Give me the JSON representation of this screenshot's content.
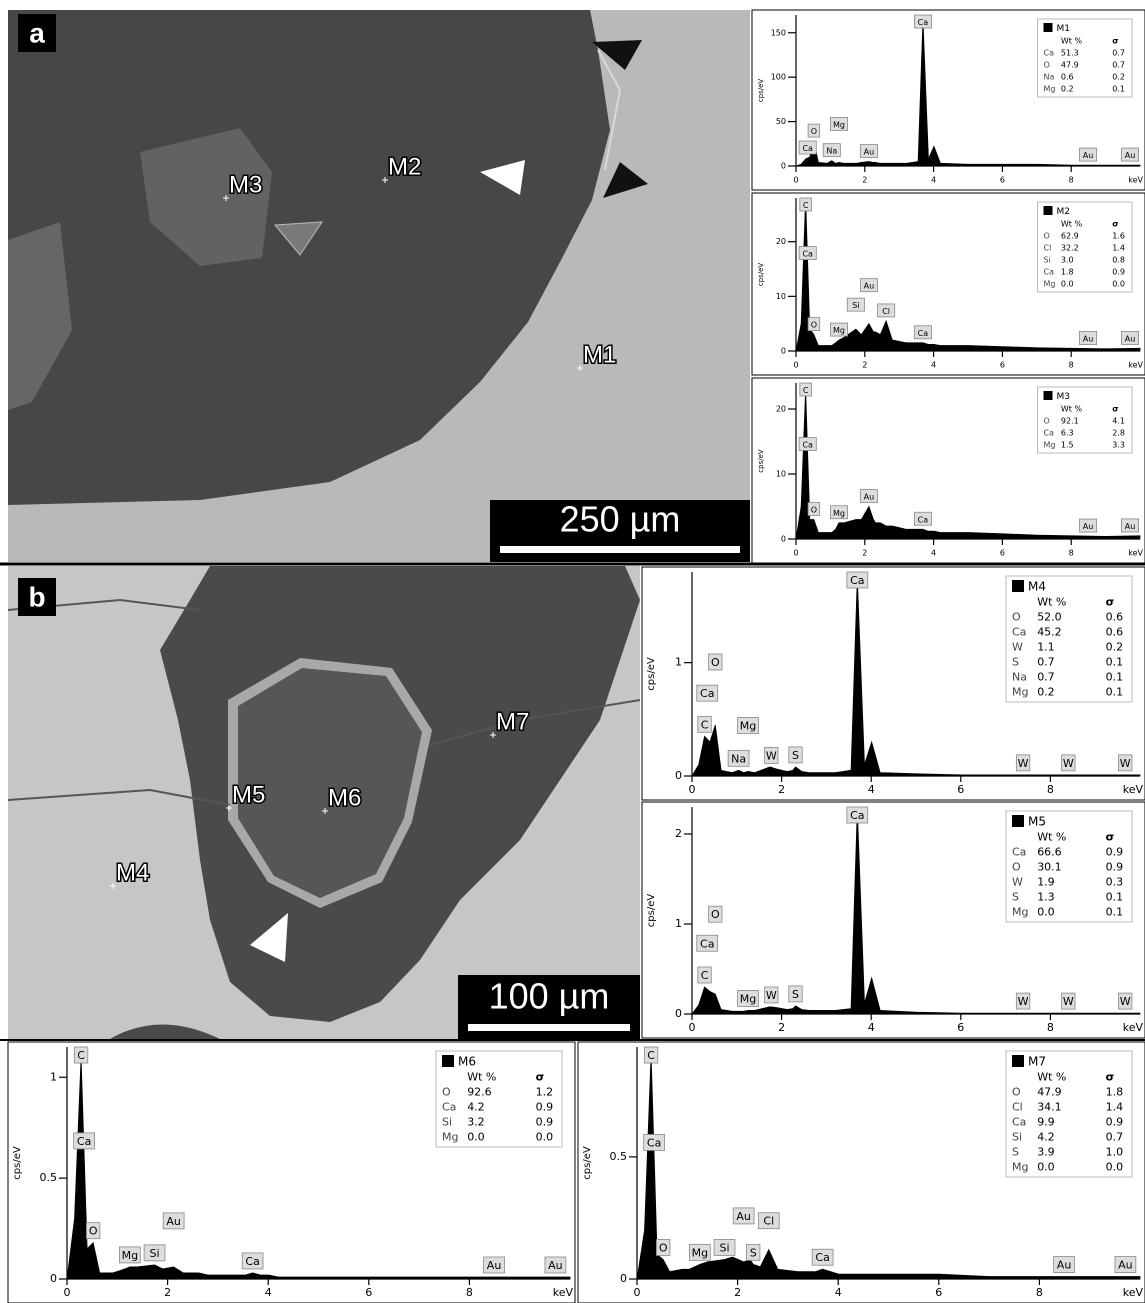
{
  "panels": [
    {
      "label": "a",
      "scale_bar": "250 µm",
      "points": [
        "M3",
        "M2",
        "M1"
      ]
    },
    {
      "label": "b",
      "scale_bar": "100 µm",
      "points": [
        "M7",
        "M5",
        "M6",
        "M4"
      ]
    }
  ],
  "chart_data": [
    {
      "type": "area",
      "x_label": "keV",
      "y_label": "cps/eV",
      "x": [
        0,
        0.15,
        0.28,
        0.4,
        0.52,
        0.65,
        0.9,
        1.04,
        1.15,
        1.25,
        1.4,
        1.74,
        1.9,
        2.12,
        2.25,
        2.31,
        2.45,
        2.62,
        2.8,
        3.2,
        3.55,
        3.69,
        3.85,
        4.01,
        4.2,
        5,
        6,
        7,
        8,
        9,
        10
      ],
      "series": [
        {
          "name": "M1",
          "color": "#000000",
          "values": [
            0,
            2,
            8,
            10,
            28,
            4,
            3,
            6,
            3,
            4,
            3,
            3,
            4,
            5,
            4,
            4,
            3,
            3,
            3,
            3,
            5,
            165,
            8,
            22,
            3,
            2,
            2,
            2,
            1,
            1,
            1
          ]
        }
      ],
      "xlim": [
        0,
        10
      ],
      "xticks": [
        0,
        2,
        4,
        6,
        8
      ],
      "ylim": [
        0,
        170
      ],
      "yticks": [
        0,
        50,
        100,
        150
      ],
      "peak_labels": [
        {
          "text": "Ca",
          "x": 0.34
        },
        {
          "text": "O",
          "x": 0.52
        },
        {
          "text": "Na",
          "x": 1.04
        },
        {
          "text": "Mg",
          "x": 1.25
        },
        {
          "text": "Au",
          "x": 2.12
        },
        {
          "text": "Ca",
          "x": 3.69
        },
        {
          "text": "Au",
          "x": 8.49
        },
        {
          "text": "Au",
          "x": 9.71
        }
      ],
      "composition": {
        "columns": [
          "Wt %",
          "σ"
        ],
        "rows": [
          [
            "Ca",
            "51.3",
            "0.7"
          ],
          [
            "O",
            "47.9",
            "0.7"
          ],
          [
            "Na",
            "0.6",
            "0.2"
          ],
          [
            "Mg",
            "0.2",
            "0.1"
          ]
        ]
      }
    },
    {
      "type": "area",
      "x_label": "keV",
      "y_label": "cps/eV",
      "x": [
        0,
        0.15,
        0.28,
        0.4,
        0.52,
        0.65,
        0.9,
        1.04,
        1.15,
        1.25,
        1.4,
        1.74,
        1.9,
        2.12,
        2.25,
        2.31,
        2.45,
        2.62,
        2.8,
        3.2,
        3.55,
        3.69,
        3.85,
        4.01,
        4.2,
        5,
        6,
        7,
        8,
        9,
        10
      ],
      "series": [
        {
          "name": "M2",
          "color": "#000000",
          "values": [
            0,
            5,
            28,
            4,
            3,
            1,
            1,
            1,
            1.5,
            2,
            2.5,
            4,
            3,
            5,
            3.5,
            3.5,
            3,
            5.5,
            2,
            1.5,
            1.5,
            1.5,
            1.2,
            1.2,
            1,
            1,
            0.8,
            0.6,
            0.5,
            0.4,
            0.5
          ]
        }
      ],
      "xlim": [
        0,
        10
      ],
      "xticks": [
        0,
        2,
        4,
        6,
        8
      ],
      "ylim": [
        0,
        28
      ],
      "yticks": [
        0,
        10,
        20
      ],
      "peak_labels": [
        {
          "text": "C",
          "x": 0.28
        },
        {
          "text": "Ca",
          "x": 0.34
        },
        {
          "text": "O",
          "x": 0.52
        },
        {
          "text": "Mg",
          "x": 1.25
        },
        {
          "text": "Si",
          "x": 1.74
        },
        {
          "text": "Au",
          "x": 2.12
        },
        {
          "text": "Cl",
          "x": 2.62
        },
        {
          "text": "Ca",
          "x": 3.69
        },
        {
          "text": "Au",
          "x": 8.49
        },
        {
          "text": "Au",
          "x": 9.71
        }
      ],
      "composition": {
        "columns": [
          "Wt %",
          "σ"
        ],
        "rows": [
          [
            "O",
            "62.9",
            "1.6"
          ],
          [
            "Cl",
            "32.2",
            "1.4"
          ],
          [
            "Si",
            "3.0",
            "0.8"
          ],
          [
            "Ca",
            "1.8",
            "0.9"
          ],
          [
            "Mg",
            "0.0",
            "0.0"
          ]
        ]
      }
    },
    {
      "type": "area",
      "x_label": "keV",
      "y_label": "cps/eV",
      "x": [
        0,
        0.15,
        0.28,
        0.4,
        0.52,
        0.65,
        0.9,
        1.04,
        1.15,
        1.25,
        1.4,
        1.74,
        1.9,
        2.12,
        2.25,
        2.31,
        2.45,
        2.62,
        2.8,
        3.2,
        3.55,
        3.69,
        3.85,
        4.01,
        4.2,
        5,
        6,
        7,
        8,
        9,
        10
      ],
      "series": [
        {
          "name": "M3",
          "color": "#000000",
          "values": [
            0,
            5,
            23,
            3,
            3,
            1,
            1,
            1,
            1.5,
            2.5,
            2.5,
            3,
            3,
            5,
            3,
            2.5,
            2.5,
            2,
            2,
            1.5,
            1.5,
            1.5,
            1.2,
            1.2,
            1,
            1,
            0.8,
            0.6,
            0.5,
            0.4,
            0.5
          ]
        }
      ],
      "xlim": [
        0,
        10
      ],
      "xticks": [
        0,
        2,
        4,
        6,
        8
      ],
      "ylim": [
        0,
        24
      ],
      "yticks": [
        0,
        10,
        20
      ],
      "peak_labels": [
        {
          "text": "C",
          "x": 0.28
        },
        {
          "text": "Ca",
          "x": 0.34
        },
        {
          "text": "O",
          "x": 0.52
        },
        {
          "text": "Mg",
          "x": 1.25
        },
        {
          "text": "Au",
          "x": 2.12
        },
        {
          "text": "Ca",
          "x": 3.69
        },
        {
          "text": "Au",
          "x": 8.49
        },
        {
          "text": "Au",
          "x": 9.71
        }
      ],
      "composition": {
        "columns": [
          "Wt %",
          "σ"
        ],
        "rows": [
          [
            "O",
            "92.1",
            "4.1"
          ],
          [
            "Ca",
            "6.3",
            "2.8"
          ],
          [
            "Mg",
            "1.5",
            "3.3"
          ]
        ]
      }
    },
    {
      "type": "area",
      "x_label": "keV",
      "y_label": "cps/eV",
      "x": [
        0,
        0.15,
        0.28,
        0.4,
        0.52,
        0.65,
        0.9,
        1.04,
        1.15,
        1.25,
        1.4,
        1.74,
        1.9,
        2.12,
        2.25,
        2.31,
        2.45,
        2.62,
        2.8,
        3.2,
        3.55,
        3.69,
        3.85,
        4.01,
        4.2,
        5,
        6,
        7,
        8,
        9,
        10
      ],
      "series": [
        {
          "name": "M4",
          "color": "#000000",
          "values": [
            0,
            0.1,
            0.35,
            0.3,
            0.45,
            0.05,
            0.03,
            0.05,
            0.03,
            0.04,
            0.03,
            0.08,
            0.06,
            0.04,
            0.05,
            0.08,
            0.04,
            0.03,
            0.03,
            0.03,
            0.05,
            1.75,
            0.1,
            0.3,
            0.03,
            0.02,
            0.01,
            0.01,
            0.01,
            0.01,
            0.01
          ]
        }
      ],
      "xlim": [
        0,
        10
      ],
      "xticks": [
        0,
        2,
        4,
        6,
        8
      ],
      "ylim": [
        0,
        1.8
      ],
      "yticks": [
        0,
        1
      ],
      "peak_labels": [
        {
          "text": "C",
          "x": 0.28
        },
        {
          "text": "Ca",
          "x": 0.34
        },
        {
          "text": "O",
          "x": 0.52
        },
        {
          "text": "Na",
          "x": 1.04
        },
        {
          "text": "Mg",
          "x": 1.25
        },
        {
          "text": "W",
          "x": 1.77
        },
        {
          "text": "S",
          "x": 2.31
        },
        {
          "text": "Ca",
          "x": 3.69
        },
        {
          "text": "W",
          "x": 7.39
        },
        {
          "text": "W",
          "x": 8.4
        },
        {
          "text": "W",
          "x": 9.67
        }
      ],
      "composition": {
        "columns": [
          "Wt %",
          "σ"
        ],
        "rows": [
          [
            "O",
            "52.0",
            "0.6"
          ],
          [
            "Ca",
            "45.2",
            "0.6"
          ],
          [
            "W",
            "1.1",
            "0.2"
          ],
          [
            "S",
            "0.7",
            "0.1"
          ],
          [
            "Na",
            "0.7",
            "0.1"
          ],
          [
            "Mg",
            "0.2",
            "0.1"
          ]
        ]
      }
    },
    {
      "type": "area",
      "x_label": "keV",
      "y_label": "cps/eV",
      "x": [
        0,
        0.15,
        0.28,
        0.4,
        0.52,
        0.65,
        0.9,
        1.04,
        1.15,
        1.25,
        1.4,
        1.74,
        1.9,
        2.12,
        2.25,
        2.31,
        2.45,
        2.62,
        2.8,
        3.2,
        3.55,
        3.69,
        3.85,
        4.01,
        4.2,
        5,
        6,
        7,
        8,
        9,
        10
      ],
      "series": [
        {
          "name": "M5",
          "color": "#000000",
          "values": [
            0,
            0.1,
            0.3,
            0.25,
            0.22,
            0.05,
            0.03,
            0.03,
            0.03,
            0.04,
            0.04,
            0.08,
            0.07,
            0.05,
            0.06,
            0.09,
            0.05,
            0.04,
            0.04,
            0.04,
            0.06,
            2.28,
            0.12,
            0.4,
            0.04,
            0.02,
            0.01,
            0.01,
            0.01,
            0.01,
            0.01
          ]
        }
      ],
      "xlim": [
        0,
        10
      ],
      "xticks": [
        0,
        2,
        4,
        6,
        8
      ],
      "ylim": [
        0,
        2.3
      ],
      "yticks": [
        0,
        1,
        2
      ],
      "peak_labels": [
        {
          "text": "C",
          "x": 0.28
        },
        {
          "text": "Ca",
          "x": 0.34
        },
        {
          "text": "O",
          "x": 0.52
        },
        {
          "text": "Mg",
          "x": 1.25
        },
        {
          "text": "W",
          "x": 1.77
        },
        {
          "text": "S",
          "x": 2.31
        },
        {
          "text": "Ca",
          "x": 3.69
        },
        {
          "text": "W",
          "x": 7.39
        },
        {
          "text": "W",
          "x": 8.4
        },
        {
          "text": "W",
          "x": 9.67
        }
      ],
      "composition": {
        "columns": [
          "Wt %",
          "σ"
        ],
        "rows": [
          [
            "Ca",
            "66.6",
            "0.9"
          ],
          [
            "O",
            "30.1",
            "0.9"
          ],
          [
            "W",
            "1.9",
            "0.3"
          ],
          [
            "S",
            "1.3",
            "0.1"
          ],
          [
            "Mg",
            "0.0",
            "0.1"
          ]
        ]
      }
    },
    {
      "type": "area",
      "x_label": "keV",
      "y_label": "cps/eV",
      "x": [
        0,
        0.15,
        0.28,
        0.4,
        0.52,
        0.65,
        0.9,
        1.04,
        1.15,
        1.25,
        1.4,
        1.74,
        1.9,
        2.12,
        2.25,
        2.31,
        2.45,
        2.62,
        2.8,
        3.2,
        3.55,
        3.69,
        3.85,
        4.01,
        4.2,
        5,
        6,
        7,
        8,
        9,
        10
      ],
      "series": [
        {
          "name": "M6",
          "color": "#000000",
          "values": [
            0,
            0.3,
            1.1,
            0.15,
            0.18,
            0.03,
            0.03,
            0.04,
            0.05,
            0.06,
            0.06,
            0.07,
            0.05,
            0.06,
            0.04,
            0.03,
            0.03,
            0.03,
            0.02,
            0.02,
            0.02,
            0.03,
            0.02,
            0.02,
            0.01,
            0.01,
            0.01,
            0.01,
            0.01,
            0.01,
            0.01
          ]
        }
      ],
      "xlim": [
        0,
        10
      ],
      "xticks": [
        0,
        2,
        4,
        6,
        8
      ],
      "ylim": [
        0,
        1.15
      ],
      "yticks": [
        0,
        0.5,
        1
      ],
      "peak_labels": [
        {
          "text": "C",
          "x": 0.28
        },
        {
          "text": "Ca",
          "x": 0.34
        },
        {
          "text": "O",
          "x": 0.52
        },
        {
          "text": "Mg",
          "x": 1.25
        },
        {
          "text": "Si",
          "x": 1.74
        },
        {
          "text": "Au",
          "x": 2.12
        },
        {
          "text": "Ca",
          "x": 3.69
        },
        {
          "text": "Au",
          "x": 8.49
        },
        {
          "text": "Au",
          "x": 9.71
        }
      ],
      "composition": {
        "columns": [
          "Wt %",
          "σ"
        ],
        "rows": [
          [
            "O",
            "92.6",
            "1.2"
          ],
          [
            "Ca",
            "4.2",
            "0.9"
          ],
          [
            "Si",
            "3.2",
            "0.9"
          ],
          [
            "Mg",
            "0.0",
            "0.0"
          ]
        ]
      }
    },
    {
      "type": "area",
      "x_label": "keV",
      "y_label": "cps/eV",
      "x": [
        0,
        0.15,
        0.28,
        0.4,
        0.52,
        0.65,
        0.9,
        1.04,
        1.15,
        1.25,
        1.4,
        1.74,
        1.9,
        2.12,
        2.25,
        2.31,
        2.45,
        2.62,
        2.8,
        3.2,
        3.55,
        3.69,
        3.85,
        4.01,
        4.2,
        5,
        6,
        7,
        8,
        9,
        10
      ],
      "series": [
        {
          "name": "M7",
          "color": "#000000",
          "values": [
            0,
            0.2,
            0.92,
            0.1,
            0.08,
            0.03,
            0.04,
            0.04,
            0.05,
            0.06,
            0.07,
            0.08,
            0.09,
            0.07,
            0.08,
            0.06,
            0.05,
            0.12,
            0.04,
            0.03,
            0.03,
            0.04,
            0.03,
            0.02,
            0.02,
            0.02,
            0.02,
            0.01,
            0.01,
            0.01,
            0.01
          ]
        }
      ],
      "xlim": [
        0,
        10
      ],
      "xticks": [
        0,
        2,
        4,
        6,
        8
      ],
      "ylim": [
        0,
        0.95
      ],
      "yticks": [
        0,
        0.5
      ],
      "peak_labels": [
        {
          "text": "C",
          "x": 0.28
        },
        {
          "text": "Ca",
          "x": 0.34
        },
        {
          "text": "O",
          "x": 0.52
        },
        {
          "text": "Mg",
          "x": 1.25
        },
        {
          "text": "Si",
          "x": 1.74
        },
        {
          "text": "Au",
          "x": 2.12
        },
        {
          "text": "S",
          "x": 2.31
        },
        {
          "text": "Cl",
          "x": 2.62
        },
        {
          "text": "Ca",
          "x": 3.69
        },
        {
          "text": "Au",
          "x": 8.49
        },
        {
          "text": "Au",
          "x": 9.71
        }
      ],
      "composition": {
        "columns": [
          "Wt %",
          "σ"
        ],
        "rows": [
          [
            "O",
            "47.9",
            "1.8"
          ],
          [
            "Cl",
            "34.1",
            "1.4"
          ],
          [
            "Ca",
            "9.9",
            "0.9"
          ],
          [
            "Si",
            "4.2",
            "0.7"
          ],
          [
            "S",
            "3.9",
            "1.0"
          ],
          [
            "Mg",
            "0.0",
            "0.0"
          ]
        ]
      }
    }
  ]
}
